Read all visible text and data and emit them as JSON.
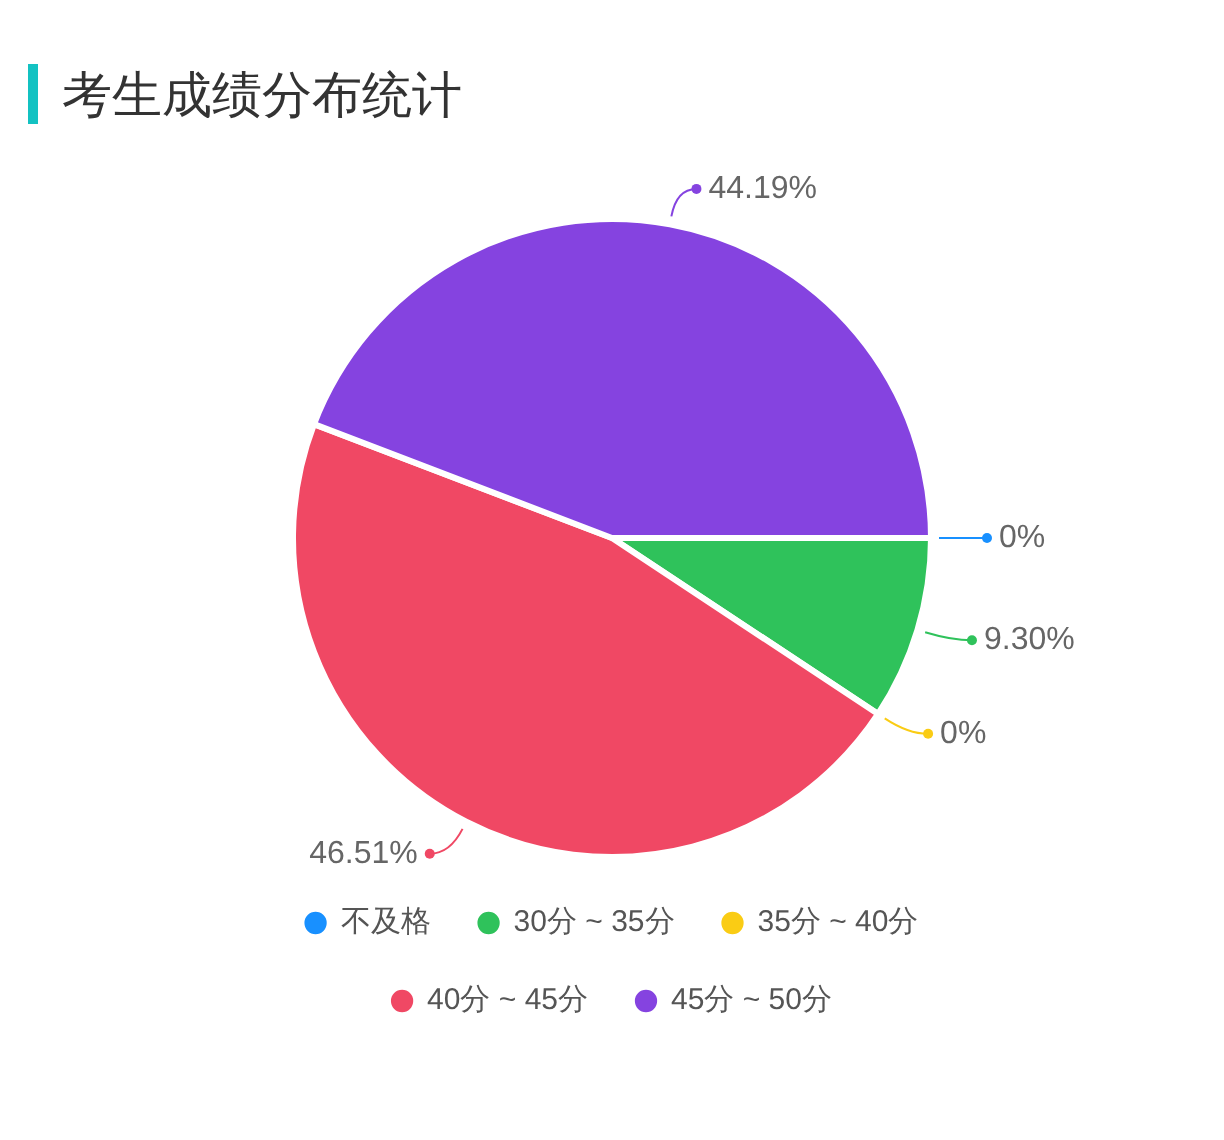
{
  "chart_data": {
    "type": "pie",
    "title": "考生成绩分布统计",
    "categories": [
      "不及格",
      "30分 ~ 35分",
      "35分 ~ 40分",
      "40分 ~ 45分",
      "45分 ~ 50分"
    ],
    "values": [
      0,
      9.3,
      0,
      46.51,
      44.19
    ],
    "value_labels": [
      "0%",
      "9.30%",
      "0%",
      "46.51%",
      "44.19%"
    ],
    "colors": [
      "#1890ff",
      "#2fc25b",
      "#facc14",
      "#f04864",
      "#8543e0"
    ],
    "legend": "bottom"
  }
}
